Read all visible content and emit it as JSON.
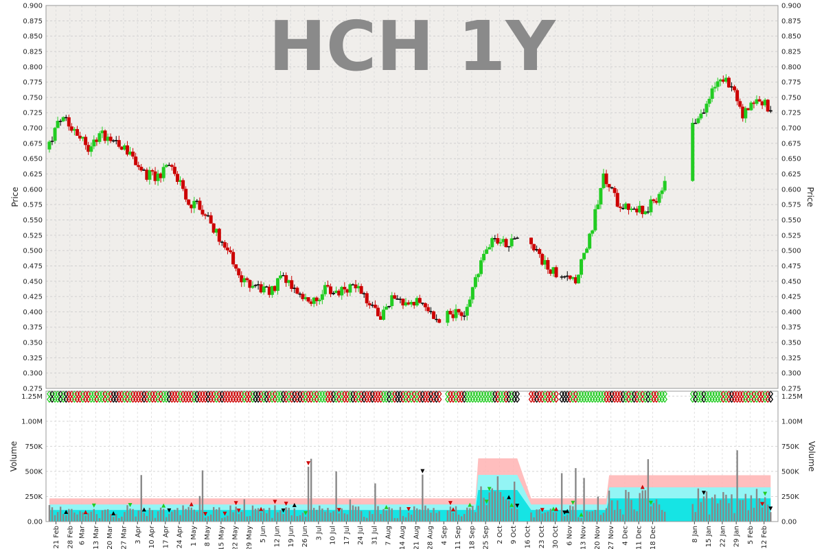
{
  "chart_data": {
    "type": "candlestick",
    "title": "HCH 1Y",
    "price_panel": {
      "ylabel": "Price",
      "ylim": [
        0.275,
        0.9
      ],
      "yticks": [
        "0.275",
        "0.300",
        "0.325",
        "0.350",
        "0.375",
        "0.400",
        "0.425",
        "0.450",
        "0.475",
        "0.500",
        "0.525",
        "0.550",
        "0.575",
        "0.600",
        "0.625",
        "0.650",
        "0.675",
        "0.700",
        "0.725",
        "0.750",
        "0.775",
        "0.800",
        "0.825",
        "0.850",
        "0.875",
        "0.900"
      ],
      "grid": true,
      "up_color": "#22cc22",
      "down_color": "#cc0000",
      "flat_color": "#000000",
      "background": "#f0eeeb",
      "close_series": [
        [
          "2023-02-17",
          0.665
        ],
        [
          "2023-02-24",
          0.715
        ],
        [
          "2023-03-03",
          0.7
        ],
        [
          "2023-03-10",
          0.67
        ],
        [
          "2023-03-17",
          0.69
        ],
        [
          "2023-03-24",
          0.68
        ],
        [
          "2023-03-31",
          0.66
        ],
        [
          "2023-04-07",
          0.625
        ],
        [
          "2023-04-14",
          0.62
        ],
        [
          "2023-04-21",
          0.645
        ],
        [
          "2023-04-28",
          0.58
        ],
        [
          "2023-05-05",
          0.575
        ],
        [
          "2023-05-12",
          0.535
        ],
        [
          "2023-05-19",
          0.5
        ],
        [
          "2023-05-26",
          0.45
        ],
        [
          "2023-06-02",
          0.445
        ],
        [
          "2023-06-09",
          0.43
        ],
        [
          "2023-06-16",
          0.46
        ],
        [
          "2023-06-23",
          0.425
        ],
        [
          "2023-06-30",
          0.41
        ],
        [
          "2023-07-07",
          0.435
        ],
        [
          "2023-07-14",
          0.43
        ],
        [
          "2023-07-21",
          0.445
        ],
        [
          "2023-07-28",
          0.42
        ],
        [
          "2023-08-04",
          0.395
        ],
        [
          "2023-08-11",
          0.43
        ],
        [
          "2023-08-18",
          0.405
        ],
        [
          "2023-08-25",
          0.42
        ],
        [
          "2023-09-01",
          0.385
        ],
        [
          "2023-09-08",
          0.4
        ],
        [
          "2023-09-15",
          0.39
        ],
        [
          "2023-09-22",
          0.47
        ],
        [
          "2023-09-29",
          0.525
        ],
        [
          "2023-10-06",
          0.51
        ],
        [
          "2023-10-13",
          0.52
        ],
        [
          "2023-10-20",
          0.5
        ],
        [
          "2023-10-27",
          0.47
        ],
        [
          "2023-11-03",
          0.46
        ],
        [
          "2023-11-10",
          0.455
        ],
        [
          "2023-11-17",
          0.52
        ],
        [
          "2023-11-24",
          0.62
        ],
        [
          "2023-12-01",
          0.58
        ],
        [
          "2023-12-08",
          0.57
        ],
        [
          "2023-12-15",
          0.565
        ],
        [
          "2023-12-22",
          0.59
        ],
        [
          "2023-12-29",
          0.65
        ],
        [
          "2024-01-05",
          0.71
        ],
        [
          "2024-01-12",
          0.72
        ],
        [
          "2024-01-19",
          0.77
        ],
        [
          "2024-01-26",
          0.775
        ],
        [
          "2024-02-02",
          0.72
        ],
        [
          "2024-02-09",
          0.75
        ],
        [
          "2024-02-16",
          0.73
        ]
      ]
    },
    "volume_panel": {
      "ylabel": "Volume",
      "ylim": [
        0,
        1300000
      ],
      "yticks": [
        "0.00",
        "250K",
        "500K",
        "750K",
        "1.00M",
        "1.25M"
      ],
      "grid": true,
      "background": "#ffffff",
      "band_colors": [
        "#ffb3b3",
        "#80ffff",
        "#00e0e0"
      ],
      "bar_color": "#888888"
    },
    "x_axis": {
      "tick_labels": [
        "21 Feb",
        "28 Feb",
        "6 Mar",
        "13 Mar",
        "20 Mar",
        "27 Mar",
        "3 Apr",
        "10 Apr",
        "17 Apr",
        "24 Apr",
        "1 May",
        "8 May",
        "15 May",
        "22 May",
        "29 May",
        "5 Jun",
        "12 Jun",
        "19 Jun",
        "26 Jun",
        "3 Jul",
        "10 Jul",
        "17 Jul",
        "24 Jul",
        "31 Jul",
        "7 Aug",
        "14 Aug",
        "21 Aug",
        "28 Aug",
        "4 Sep",
        "11 Sep",
        "18 Sep",
        "25 Sep",
        "2 Oct",
        "9 Oct",
        "16 Oct",
        "23 Oct",
        "30 Oct",
        "6 Nov",
        "13 Nov",
        "20 Nov",
        "27 Nov",
        "4 Dec",
        "11 Dec",
        "18 Dec",
        "8 Jan",
        "15 Jan",
        "22 Jan",
        "29 Jan",
        "5 Feb",
        "12 Feb"
      ]
    }
  }
}
